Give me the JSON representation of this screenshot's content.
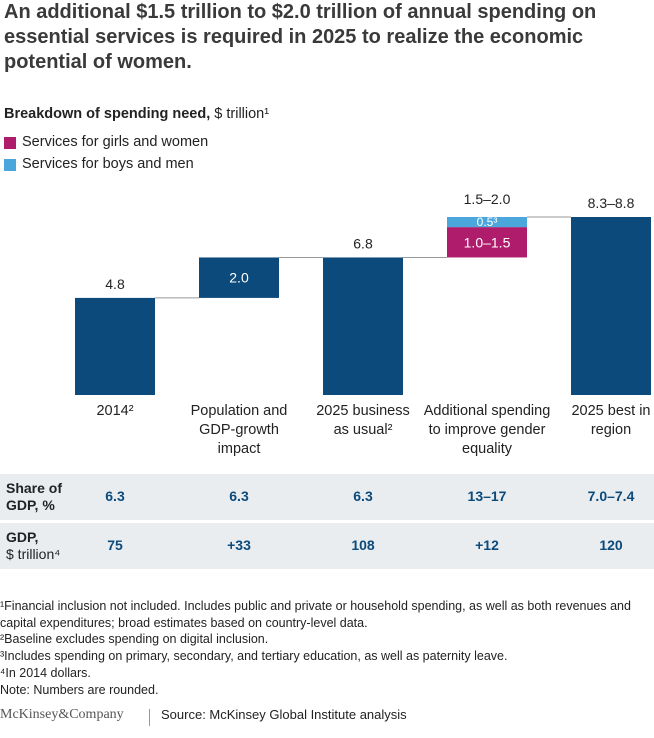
{
  "chart_data": {
    "type": "waterfall",
    "title": "An additional $1.5 trillion to $2.0 trillion of annual spending on essential services is required in 2025 to realize the economic potential of women.",
    "subtitle": "Breakdown of spending need,",
    "unit": "$ trillion¹",
    "categories": [
      "2014²",
      "Population and GDP-growth impact",
      "2025 business as usual²",
      "Additional spending to improve gender equality",
      "2025 best in region"
    ],
    "measure": [
      "absolute",
      "relative",
      "absolute",
      "relative",
      "absolute"
    ],
    "values": [
      4.8,
      2.0,
      6.8,
      null,
      8.8
    ],
    "value_labels": [
      "4.8",
      "2.0",
      "6.8",
      null,
      "8.3–8.8"
    ],
    "color": "#0b4a7a",
    "series": [
      {
        "name": "Services for girls and women",
        "color": "#b01c6c",
        "values": [
          null,
          null,
          null,
          1.5,
          null
        ],
        "value_labels": [
          null,
          null,
          null,
          "1.0–1.5",
          null
        ]
      },
      {
        "name": "Services for boys and men",
        "color": "#4ba6dc",
        "values": [
          null,
          null,
          null,
          0.5,
          null
        ],
        "value_labels": [
          null,
          null,
          null,
          "0.5³",
          null
        ]
      }
    ],
    "annotation": "1.5–2.0",
    "ylim": [
      0,
      8.8
    ]
  },
  "table": {
    "rows": [
      {
        "label": "Share of GDP, %",
        "cells": [
          "6.3",
          "6.3",
          "6.3",
          "13–17",
          "7.0–7.4"
        ]
      },
      {
        "label": "GDP,",
        "sublabel": "$ trillion⁴",
        "cells": [
          "75",
          "+33",
          "108",
          "+12",
          "120"
        ]
      }
    ]
  },
  "footnotes": [
    "¹Financial inclusion not included. Includes public and private or household spending, as well as both revenues and capital expenditures; broad estimates based on country-level data.",
    "²Baseline excludes spending on digital inclusion.",
    "³Includes spending on primary, secondary, and tertiary education, as well as paternity leave.",
    "⁴In 2014 dollars.",
    "Note: Numbers are rounded."
  ],
  "footer": {
    "logo": "McKinsey&Company",
    "source": "Source: McKinsey Global Institute analysis"
  }
}
